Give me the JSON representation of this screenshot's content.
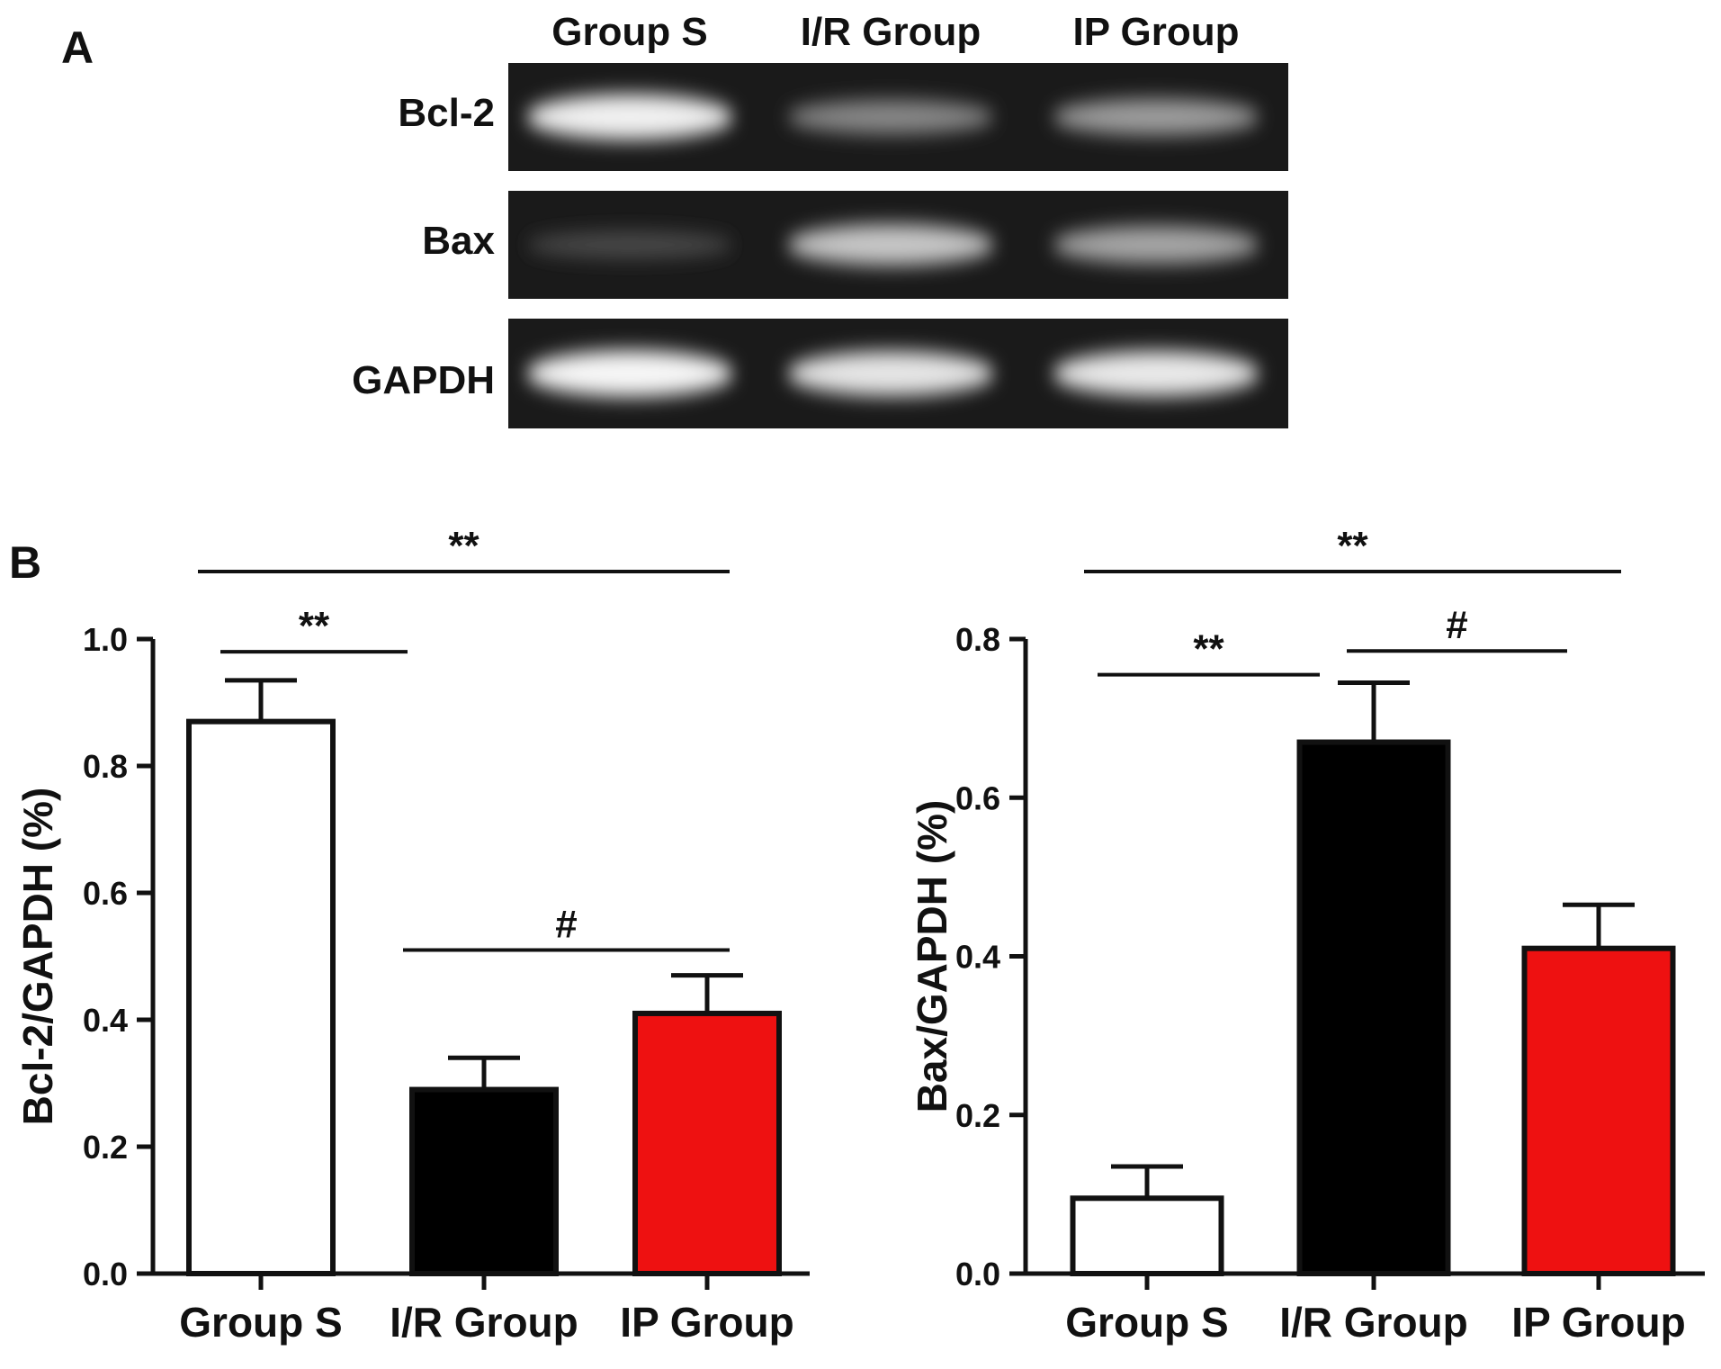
{
  "panel_a": {
    "label": "A",
    "lane_labels": [
      "Group S",
      "I/R Group",
      "IP Group"
    ],
    "rows": [
      {
        "name": "Bcl-2",
        "intensities": [
          0.95,
          0.45,
          0.55
        ]
      },
      {
        "name": "Bax",
        "intensities": [
          0.15,
          0.75,
          0.6
        ]
      },
      {
        "name": "GAPDH",
        "intensities": [
          0.98,
          0.9,
          0.92
        ]
      }
    ]
  },
  "panel_b": {
    "label": "B"
  },
  "chart_data": [
    {
      "type": "bar",
      "categories": [
        "Group S",
        "I/R Group",
        "IP Group"
      ],
      "values": [
        0.87,
        0.29,
        0.41
      ],
      "errors": [
        0.065,
        0.05,
        0.06
      ],
      "colors": [
        "#ffffff",
        "#000000",
        "#ee1111"
      ],
      "ylabel": "Bcl-2/GAPDH (%)",
      "ylim": [
        0,
        1.0
      ],
      "yticks": [
        "0.0",
        "0.2",
        "0.4",
        "0.6",
        "0.8",
        "1.0"
      ],
      "significance": [
        {
          "from": 0,
          "to": 1,
          "label": "**"
        },
        {
          "from": 0,
          "to": 2,
          "label": "**"
        },
        {
          "from": 1,
          "to": 2,
          "label": "#"
        }
      ]
    },
    {
      "type": "bar",
      "categories": [
        "Group S",
        "I/R Group",
        "IP Group"
      ],
      "values": [
        0.095,
        0.67,
        0.41
      ],
      "errors": [
        0.04,
        0.075,
        0.055
      ],
      "colors": [
        "#ffffff",
        "#000000",
        "#ee1111"
      ],
      "ylabel": "Bax/GAPDH (%)",
      "ylim": [
        0,
        0.8
      ],
      "yticks": [
        "0.0",
        "0.2",
        "0.4",
        "0.6",
        "0.8"
      ],
      "significance": [
        {
          "from": 0,
          "to": 1,
          "label": "**"
        },
        {
          "from": 0,
          "to": 2,
          "label": "**"
        },
        {
          "from": 1,
          "to": 2,
          "label": "#"
        }
      ]
    }
  ]
}
